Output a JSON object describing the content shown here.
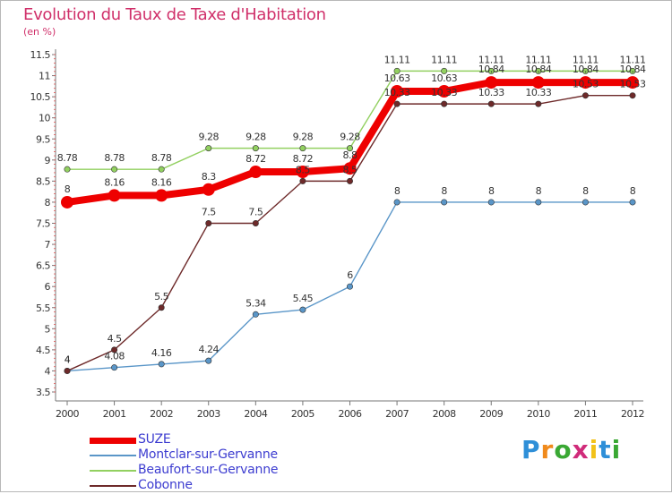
{
  "title": "Evolution du Taux de Taxe d'Habitation",
  "subtitle": "(en %)",
  "logo": {
    "text": "Proxiti",
    "letters": [
      "P",
      "r",
      "o",
      "x",
      "i",
      "t",
      "i"
    ],
    "colors": [
      "#2e8fd8",
      "#f08a1c",
      "#3aa834",
      "#d02b7a",
      "#f2c21a",
      "#2e8fd8",
      "#3aa834"
    ]
  },
  "chart_data": {
    "type": "line",
    "x": [
      "2000",
      "2001",
      "2002",
      "2003",
      "2004",
      "2005",
      "2006",
      "2007",
      "2008",
      "2009",
      "2010",
      "2011",
      "2012"
    ],
    "ylim": [
      3.5,
      11.5
    ],
    "yticks": [
      "3.5",
      "4",
      "4.5",
      "5",
      "5.5",
      "6",
      "6.5",
      "7",
      "7.5",
      "8",
      "8.5",
      "9",
      "9.5",
      "10",
      "10.5",
      "11",
      "11.5"
    ],
    "grid": false,
    "legend": "bottom-left",
    "series": [
      {
        "name": "SUZE",
        "color": "#ee0000",
        "values": [
          8,
          8.16,
          8.16,
          8.3,
          8.72,
          8.72,
          8.8,
          10.63,
          10.63,
          10.84,
          10.84,
          10.84,
          10.84
        ],
        "labels": [
          "8",
          "8.16",
          "8.16",
          "8.3",
          "8.72",
          "8.72",
          "8.8",
          "10.63",
          "10.63",
          "10.84",
          "10.84",
          "10.84",
          "10.84"
        ]
      },
      {
        "name": "Montclar-sur-Gervanne",
        "color": "#5a96c8",
        "values": [
          4,
          4.08,
          4.16,
          4.24,
          5.34,
          5.45,
          6,
          8,
          8,
          8,
          8,
          8,
          8
        ],
        "labels": [
          "4",
          "4.08",
          "4.16",
          "4.24",
          "5.34",
          "5.45",
          "6",
          "8",
          "8",
          "8",
          "8",
          "8",
          "8"
        ]
      },
      {
        "name": "Beaufort-sur-Gervanne",
        "color": "#92d060",
        "values": [
          8.78,
          8.78,
          8.78,
          9.28,
          9.28,
          9.28,
          9.28,
          11.11,
          11.11,
          11.11,
          11.11,
          11.11,
          11.11
        ],
        "labels": [
          "8.78",
          "8.78",
          "8.78",
          "9.28",
          "9.28",
          "9.28",
          "9.28",
          "11.11",
          "11.11",
          "11.11",
          "11.11",
          "11.11",
          "11.11"
        ]
      },
      {
        "name": "Cobonne",
        "color": "#6e2a2a",
        "values": [
          4,
          4.5,
          5.5,
          7.5,
          7.5,
          8.5,
          8.5,
          10.33,
          10.33,
          10.33,
          10.33,
          10.53,
          10.53
        ],
        "labels": [
          "4",
          "4.5",
          "5.5",
          "7.5",
          "7.5",
          "8.5",
          "8.5",
          "10.33",
          "10.33",
          "10.33",
          "10.33",
          "10.53",
          "10.53"
        ]
      }
    ]
  }
}
